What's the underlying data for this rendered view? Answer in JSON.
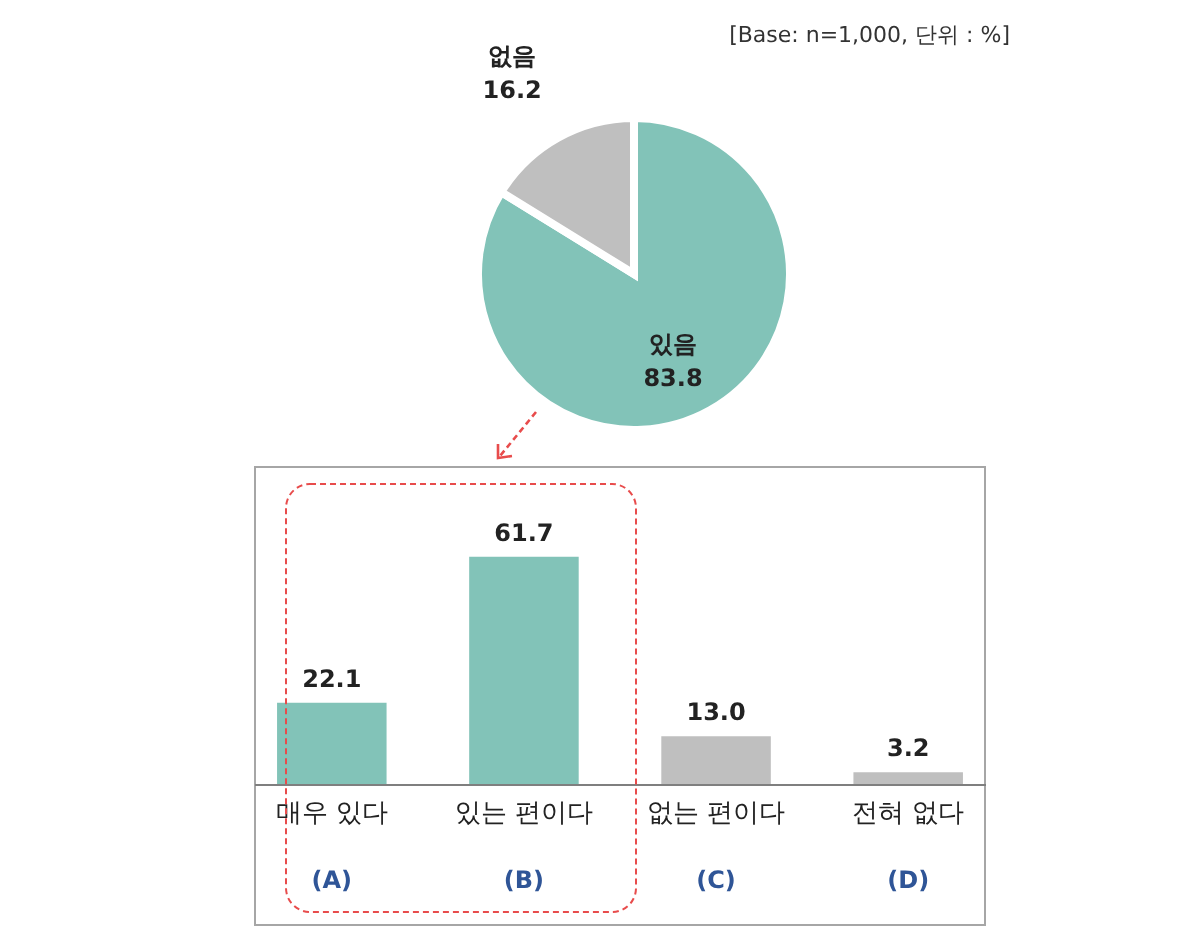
{
  "chart_data": [
    {
      "type": "pie",
      "categories": [
        "있음",
        "없음"
      ],
      "values": [
        83.8,
        16.2
      ],
      "colors": [
        "#82c3b8",
        "#bfbfbf"
      ],
      "data_labels": true,
      "annotations": [
        "[Base: n=1,000, 단위 : %]"
      ]
    },
    {
      "type": "bar",
      "categories": [
        "매우 있다",
        "있는 편이다",
        "없는 편이다",
        "전혀 없다"
      ],
      "values": [
        22.1,
        61.7,
        13.0,
        3.2
      ],
      "colors": [
        "#82c3b8",
        "#82c3b8",
        "#bfbfbf",
        "#bfbfbf"
      ],
      "value_labels": [
        "22.1",
        "61.7",
        "13.0",
        "3.2"
      ],
      "annotations": [
        "(A)",
        "(B)",
        "(C)",
        "(D)"
      ]
    }
  ]
}
